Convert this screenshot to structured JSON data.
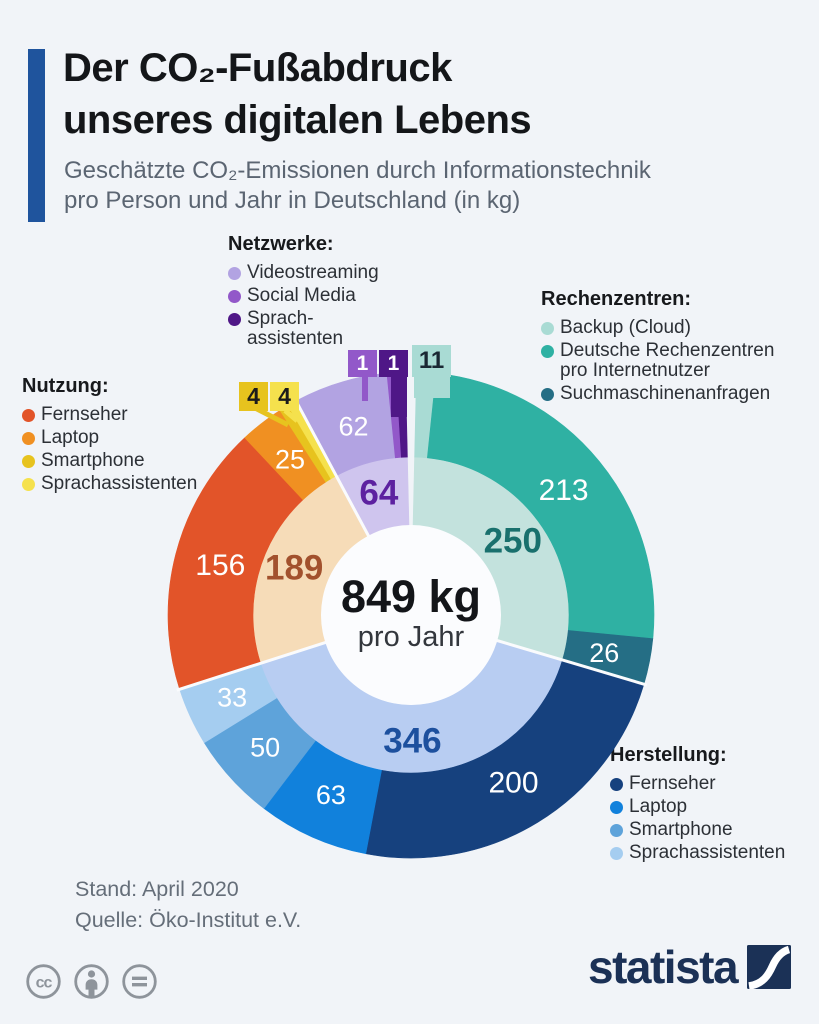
{
  "header": {
    "accent_color": "#1F549D",
    "title_lines": [
      "Der CO₂-Fußabdruck",
      "unseres digitalen Lebens"
    ],
    "subtitle_lines": [
      "Geschätzte CO₂-Emissionen durch Informationstechnik",
      "pro Person und Jahr in Deutschland (in kg)"
    ]
  },
  "chart_data": {
    "type": "donut",
    "title": "Geschätzte CO₂-Emissionen durch Informationstechnik pro Person und Jahr in Deutschland (in kg)",
    "unit": "kg",
    "total": 849,
    "total_label": "849 kg",
    "total_sublabel": "pro Jahr",
    "layout": "two rings, starts at 12 o'clock, clockwise; inner ring = group subtotals, outer ring = items",
    "groups": [
      {
        "name": "Rechenzentren",
        "legend_title": "Rechenzentren:",
        "subtotal": 250,
        "inner_color": "#C3E2DD",
        "inner_label_color": "#19706D",
        "items": [
          {
            "label": "Backup (Cloud)",
            "value": 11,
            "color": "#A9DBD4"
          },
          {
            "label": "Deutsche Rechenzentren pro Internetnutzer",
            "value": 213,
            "color": "#2FB1A3"
          },
          {
            "label": "Suchmaschinenanfragen",
            "value": 26,
            "color": "#256E85"
          }
        ]
      },
      {
        "name": "Herstellung",
        "legend_title": "Herstellung:",
        "subtotal": 346,
        "inner_color": "#B8CDF2",
        "inner_label_color": "#1D509E",
        "items": [
          {
            "label": "Fernseher",
            "value": 200,
            "color": "#16417E"
          },
          {
            "label": "Laptop",
            "value": 63,
            "color": "#1181DC"
          },
          {
            "label": "Smartphone",
            "value": 50,
            "color": "#5EA3DA"
          },
          {
            "label": "Sprachassistenten",
            "value": 33,
            "color": "#A5CDF0"
          }
        ]
      },
      {
        "name": "Nutzung",
        "legend_title": "Nutzung:",
        "subtotal": 189,
        "inner_color": "#F6DCB8",
        "inner_label_color": "#A2512D",
        "items": [
          {
            "label": "Fernseher",
            "value": 156,
            "color": "#E25429"
          },
          {
            "label": "Laptop",
            "value": 25,
            "color": "#F09022"
          },
          {
            "label": "Smartphone",
            "value": 4,
            "color": "#E7C31E"
          },
          {
            "label": "Sprachassistenten",
            "value": 4,
            "color": "#F5E14D"
          }
        ]
      },
      {
        "name": "Netzwerke",
        "legend_title": "Netzwerke:",
        "subtotal": 64,
        "inner_color": "#CFC5EE",
        "inner_label_color": "#5D21A0",
        "items": [
          {
            "label": "Videostreaming",
            "value": 62,
            "color": "#B2A3E2"
          },
          {
            "label": "Social Media",
            "value": 1,
            "color": "#9258C9"
          },
          {
            "label": "Sprach-assistenten",
            "value": 1,
            "color": "#4F1787"
          }
        ]
      }
    ]
  },
  "footer": {
    "stand": "Stand: April 2020",
    "quelle": "Quelle: Öko-Institut e.V.",
    "license_icons": [
      "cc",
      "attribution",
      "no-derivatives"
    ]
  },
  "brand": {
    "name": "statista",
    "color": "#1B3156"
  }
}
